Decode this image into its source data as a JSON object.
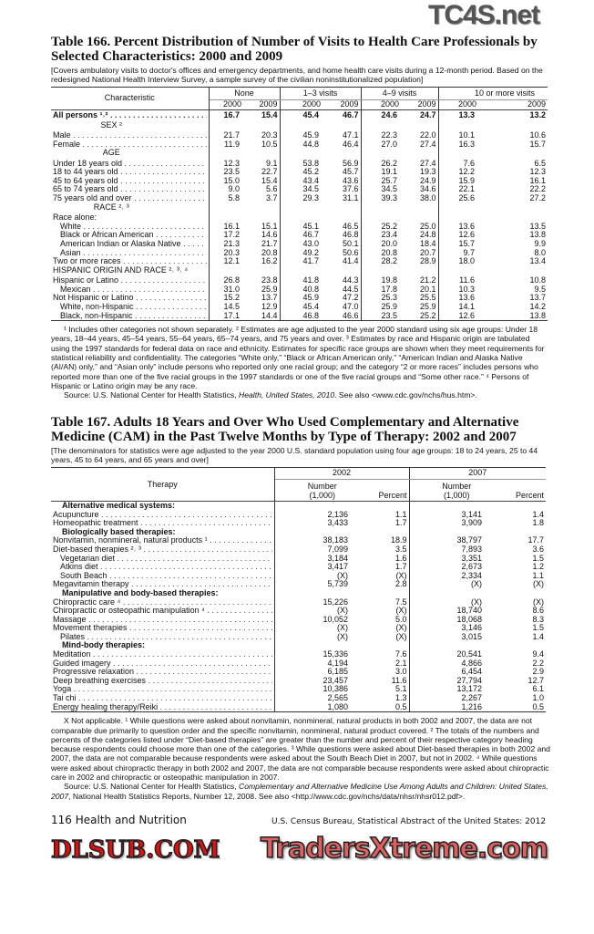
{
  "watermarks": {
    "top": "TC4S.net",
    "middle": "DLSUB.COM",
    "bottom": "TradersXtreme.com"
  },
  "t166": {
    "title": "Table 166. Percent Distribution of Number of Visits to Health Care Professionals by Selected Characteristics: 2000 and 2009",
    "headnote": "[Covers ambulatory visits to doctor's offices and emergency departments, and home health care visits during a 12-month period. Based on the redesigned National Health Interview Survey, a sample survey of the civilian noninstitutionalized population]",
    "stub_header": "Characteristic",
    "groups": [
      "None",
      "1–3 visits",
      "4–9 visits",
      "10 or more visits"
    ],
    "years": [
      "2000",
      "2009"
    ],
    "rows": [
      {
        "label": "All persons ¹˒²",
        "bold": true,
        "v": [
          "16.7",
          "15.4",
          "45.4",
          "46.7",
          "24.6",
          "24.7",
          "13.3",
          "13.2"
        ]
      },
      {
        "section": "SEX ²"
      },
      {
        "label": "Male",
        "v": [
          "21.7",
          "20.3",
          "45.9",
          "47.1",
          "22.3",
          "22.0",
          "10.1",
          "10.6"
        ]
      },
      {
        "label": "Female",
        "v": [
          "11.9",
          "10.5",
          "44.8",
          "46.4",
          "27.0",
          "27.4",
          "16.3",
          "15.7"
        ]
      },
      {
        "section": "AGE"
      },
      {
        "label": "Under 18 years old",
        "v": [
          "12.3",
          "9.1",
          "53.8",
          "56.9",
          "26.2",
          "27.4",
          "7.6",
          "6.5"
        ]
      },
      {
        "label": "18 to 44 years old",
        "v": [
          "23.5",
          "22.7",
          "45.2",
          "45.7",
          "19.1",
          "19.3",
          "12.2",
          "12.3"
        ]
      },
      {
        "label": "45 to 64 years old",
        "v": [
          "15.0",
          "15.4",
          "43.4",
          "43.6",
          "25.7",
          "24.9",
          "15.9",
          "16.1"
        ]
      },
      {
        "label": "65 to 74 years old",
        "v": [
          "9.0",
          "5.6",
          "34.5",
          "37.6",
          "34.5",
          "34.6",
          "22.1",
          "22.2"
        ]
      },
      {
        "label": "75 years old and over",
        "v": [
          "5.8",
          "3.7",
          "29.3",
          "31.1",
          "39.3",
          "38.0",
          "25.6",
          "27.2"
        ]
      },
      {
        "section": "RACE ²˒ ³"
      },
      {
        "label": "Race alone:",
        "plain": true
      },
      {
        "label": "White",
        "indent": true,
        "v": [
          "16.1",
          "15.1",
          "45.1",
          "46.5",
          "25.2",
          "25.0",
          "13.6",
          "13.5"
        ]
      },
      {
        "label": "Black or African American",
        "indent": true,
        "v": [
          "17.2",
          "14.6",
          "46.7",
          "46.8",
          "23.4",
          "24.8",
          "12.6",
          "13.8"
        ]
      },
      {
        "label": "American Indian or Alaska Native",
        "indent": true,
        "v": [
          "21.3",
          "21.7",
          "43.0",
          "50.1",
          "20.0",
          "18.4",
          "15.7",
          "9.9"
        ]
      },
      {
        "label": "Asian",
        "indent": true,
        "v": [
          "20.3",
          "20.8",
          "49.2",
          "50.6",
          "20.8",
          "20.7",
          "9.7",
          "8.0"
        ]
      },
      {
        "label": "Two or more races",
        "v": [
          "12.1",
          "16.2",
          "41.7",
          "41.4",
          "28.2",
          "28.9",
          "18.0",
          "13.4"
        ]
      },
      {
        "section": "HISPANIC ORIGIN AND RACE ²˒ ³˒ ⁴"
      },
      {
        "label": "Hispanic or Latino",
        "v": [
          "26.8",
          "23.8",
          "41.8",
          "44.3",
          "19.8",
          "21.2",
          "11.6",
          "10.8"
        ]
      },
      {
        "label": "Mexican",
        "indent": true,
        "v": [
          "31.0",
          "25.9",
          "40.8",
          "44.5",
          "17.8",
          "20.1",
          "10.3",
          "9.5"
        ]
      },
      {
        "label": "Not Hispanic or Latino",
        "v": [
          "15.2",
          "13.7",
          "45.9",
          "47.2",
          "25.3",
          "25.5",
          "13.6",
          "13.7"
        ]
      },
      {
        "label": "White, non-Hispanic",
        "indent": true,
        "v": [
          "14.5",
          "12.9",
          "45.4",
          "47.0",
          "25.9",
          "25.9",
          "14.1",
          "14.2"
        ]
      },
      {
        "label": "Black, non-Hispanic",
        "indent": true,
        "v": [
          "17.1",
          "14.4",
          "46.8",
          "46.6",
          "23.5",
          "25.2",
          "12.6",
          "13.8"
        ]
      }
    ],
    "footnotes": "¹ Includes other categories not shown separately. ² Estimates are age adjusted to the year 2000 standard using six age groups: Under 18 years, 18–44 years, 45–54 years, 55–64 years, 65–74 years, and 75 years and over. ³ Estimates by race and Hispanic origin are tabulated using the 1997 standards for federal data on race and ethnicity. Estimates for specific race groups are shown when they meet requirements for statistical reliability and confidentiality. The categories “White only,” “Black or African American only,” “American Indian and Alaska Native (AI/AN) only,” and “Asian only” include persons who reported only one racial group; and the category “2 or more races” includes persons who reported more than one of the five racial groups in the 1997 standards or one of the five racial groups and “Some other race.” ⁴ Persons of Hispanic or Latino origin may be any race.",
    "source_prefix": "Source: U.S. National Center for Health Statistics, ",
    "source_italic": "Health, United States, 2010",
    "source_suffix": ". See also <www.cdc.gov/nchs/hus.htm>."
  },
  "t167": {
    "title": "Table 167. Adults 18 Years and Over Who Used Complementary and Alternative Medicine (CAM) in the Past Twelve Months by Type of Therapy: 2002 and 2007",
    "headnote": "[The denominators for statistics were age adjusted to the year 2000 U.S. standard population using four age groups: 18 to 24 years, 25 to 44 years, 45 to 64 years, and 65 years and over]",
    "stub_header": "Therapy",
    "years": [
      "2002",
      "2007"
    ],
    "col_number": "Number (1,000)",
    "col_percent": "Percent",
    "rows": [
      {
        "section": "Alternative medical systems:"
      },
      {
        "label": "Acupuncture",
        "v": [
          "2,136",
          "1.1",
          "3,141",
          "1.4"
        ]
      },
      {
        "label": "Homeopathic treatment",
        "v": [
          "3,433",
          "1.7",
          "3,909",
          "1.8"
        ]
      },
      {
        "section": "Biologically based therapies:"
      },
      {
        "label": "Nonvitamin, nonmineral, natural products ¹",
        "v": [
          "38,183",
          "18.9",
          "38,797",
          "17.7"
        ]
      },
      {
        "label": "Diet-based therapies ²˒ ³",
        "v": [
          "7,099",
          "3.5",
          "7,893",
          "3.6"
        ]
      },
      {
        "label": "Vegetarian diet",
        "indent": true,
        "v": [
          "3,184",
          "1.6",
          "3,351",
          "1.5"
        ]
      },
      {
        "label": "Atkins diet",
        "indent": true,
        "v": [
          "3,417",
          "1.7",
          "2,673",
          "1.2"
        ]
      },
      {
        "label": "South Beach",
        "indent": true,
        "v": [
          "(X)",
          "(X)",
          "2,334",
          "1.1"
        ]
      },
      {
        "label": "Megavitamin therapy",
        "v": [
          "5,739",
          "2.8",
          "(X)",
          "(X)"
        ]
      },
      {
        "section": "Manipulative and body-based therapies:"
      },
      {
        "label": "Chiropractic care ⁴",
        "v": [
          "15,226",
          "7.5",
          "(X)",
          "(X)"
        ]
      },
      {
        "label": "Chiropractic or osteopathic manipulation ⁴",
        "v": [
          "(X)",
          "(X)",
          "18,740",
          "8.6"
        ]
      },
      {
        "label": "Massage",
        "v": [
          "10,052",
          "5.0",
          "18,068",
          "8.3"
        ]
      },
      {
        "label": "Movement therapies",
        "v": [
          "(X)",
          "(X)",
          "3,146",
          "1.5"
        ]
      },
      {
        "label": "Pilates",
        "indent": true,
        "v": [
          "(X)",
          "(X)",
          "3,015",
          "1.4"
        ]
      },
      {
        "section": "Mind-body therapies:"
      },
      {
        "label": "Meditation",
        "v": [
          "15,336",
          "7.6",
          "20,541",
          "9.4"
        ]
      },
      {
        "label": "Guided imagery",
        "v": [
          "4,194",
          "2.1",
          "4,866",
          "2.2"
        ]
      },
      {
        "label": "Progressive relaxation",
        "v": [
          "6,185",
          "3.0",
          "6,454",
          "2.9"
        ]
      },
      {
        "label": "Deep breathing exercises",
        "v": [
          "23,457",
          "11.6",
          "27,794",
          "12.7"
        ]
      },
      {
        "label": "Yoga",
        "v": [
          "10,386",
          "5.1",
          "13,172",
          "6.1"
        ]
      },
      {
        "label": "Tai chi",
        "v": [
          "2,565",
          "1.3",
          "2,267",
          "1.0"
        ]
      },
      {
        "label": "Energy healing therapy/Reiki",
        "v": [
          "1,080",
          "0.5",
          "1,216",
          "0.5"
        ]
      }
    ],
    "footnotes": "X Not applicable. ¹ While questions were asked about nonvitamin, nonmineral, natural products in both 2002 and 2007, the data are not comparable due primarily to question order and the specific nonvitamin, nonmineral, natural product covered. ² The totals of the numbers and percents of the categories listed under “Diet-based therapies” are greater than the number and percent of their respective category heading because respondents could choose more than one of the categories. ³ While questions were asked about Diet-based therapies in both 2002 and 2007, the data are not comparable because respondents were asked about the South Beach Diet in 2007, but not in 2002. ⁴ While questions were asked about chiropractic therapy in both 2002 and 2007, the data are not comparable because respondents were asked about chiropractic care in 2002 and chiropractic or osteopathic manipulation in 2007.",
    "source_prefix": "Source: U.S. National Center for Health Statistics, ",
    "source_italic": "Complementary and Alternative Medicine Use Among Adults and Children: United States, 2007",
    "source_suffix": ", National Health Statistics Reports, Number 12, 2008. See also <http://www.cdc.gov/nchs/data/nhsr/nhsr012.pdf>."
  },
  "footer": {
    "page": "116  Health and Nutrition",
    "publication": "U.S. Census Bureau, Statistical Abstract of the United States: 2012"
  }
}
